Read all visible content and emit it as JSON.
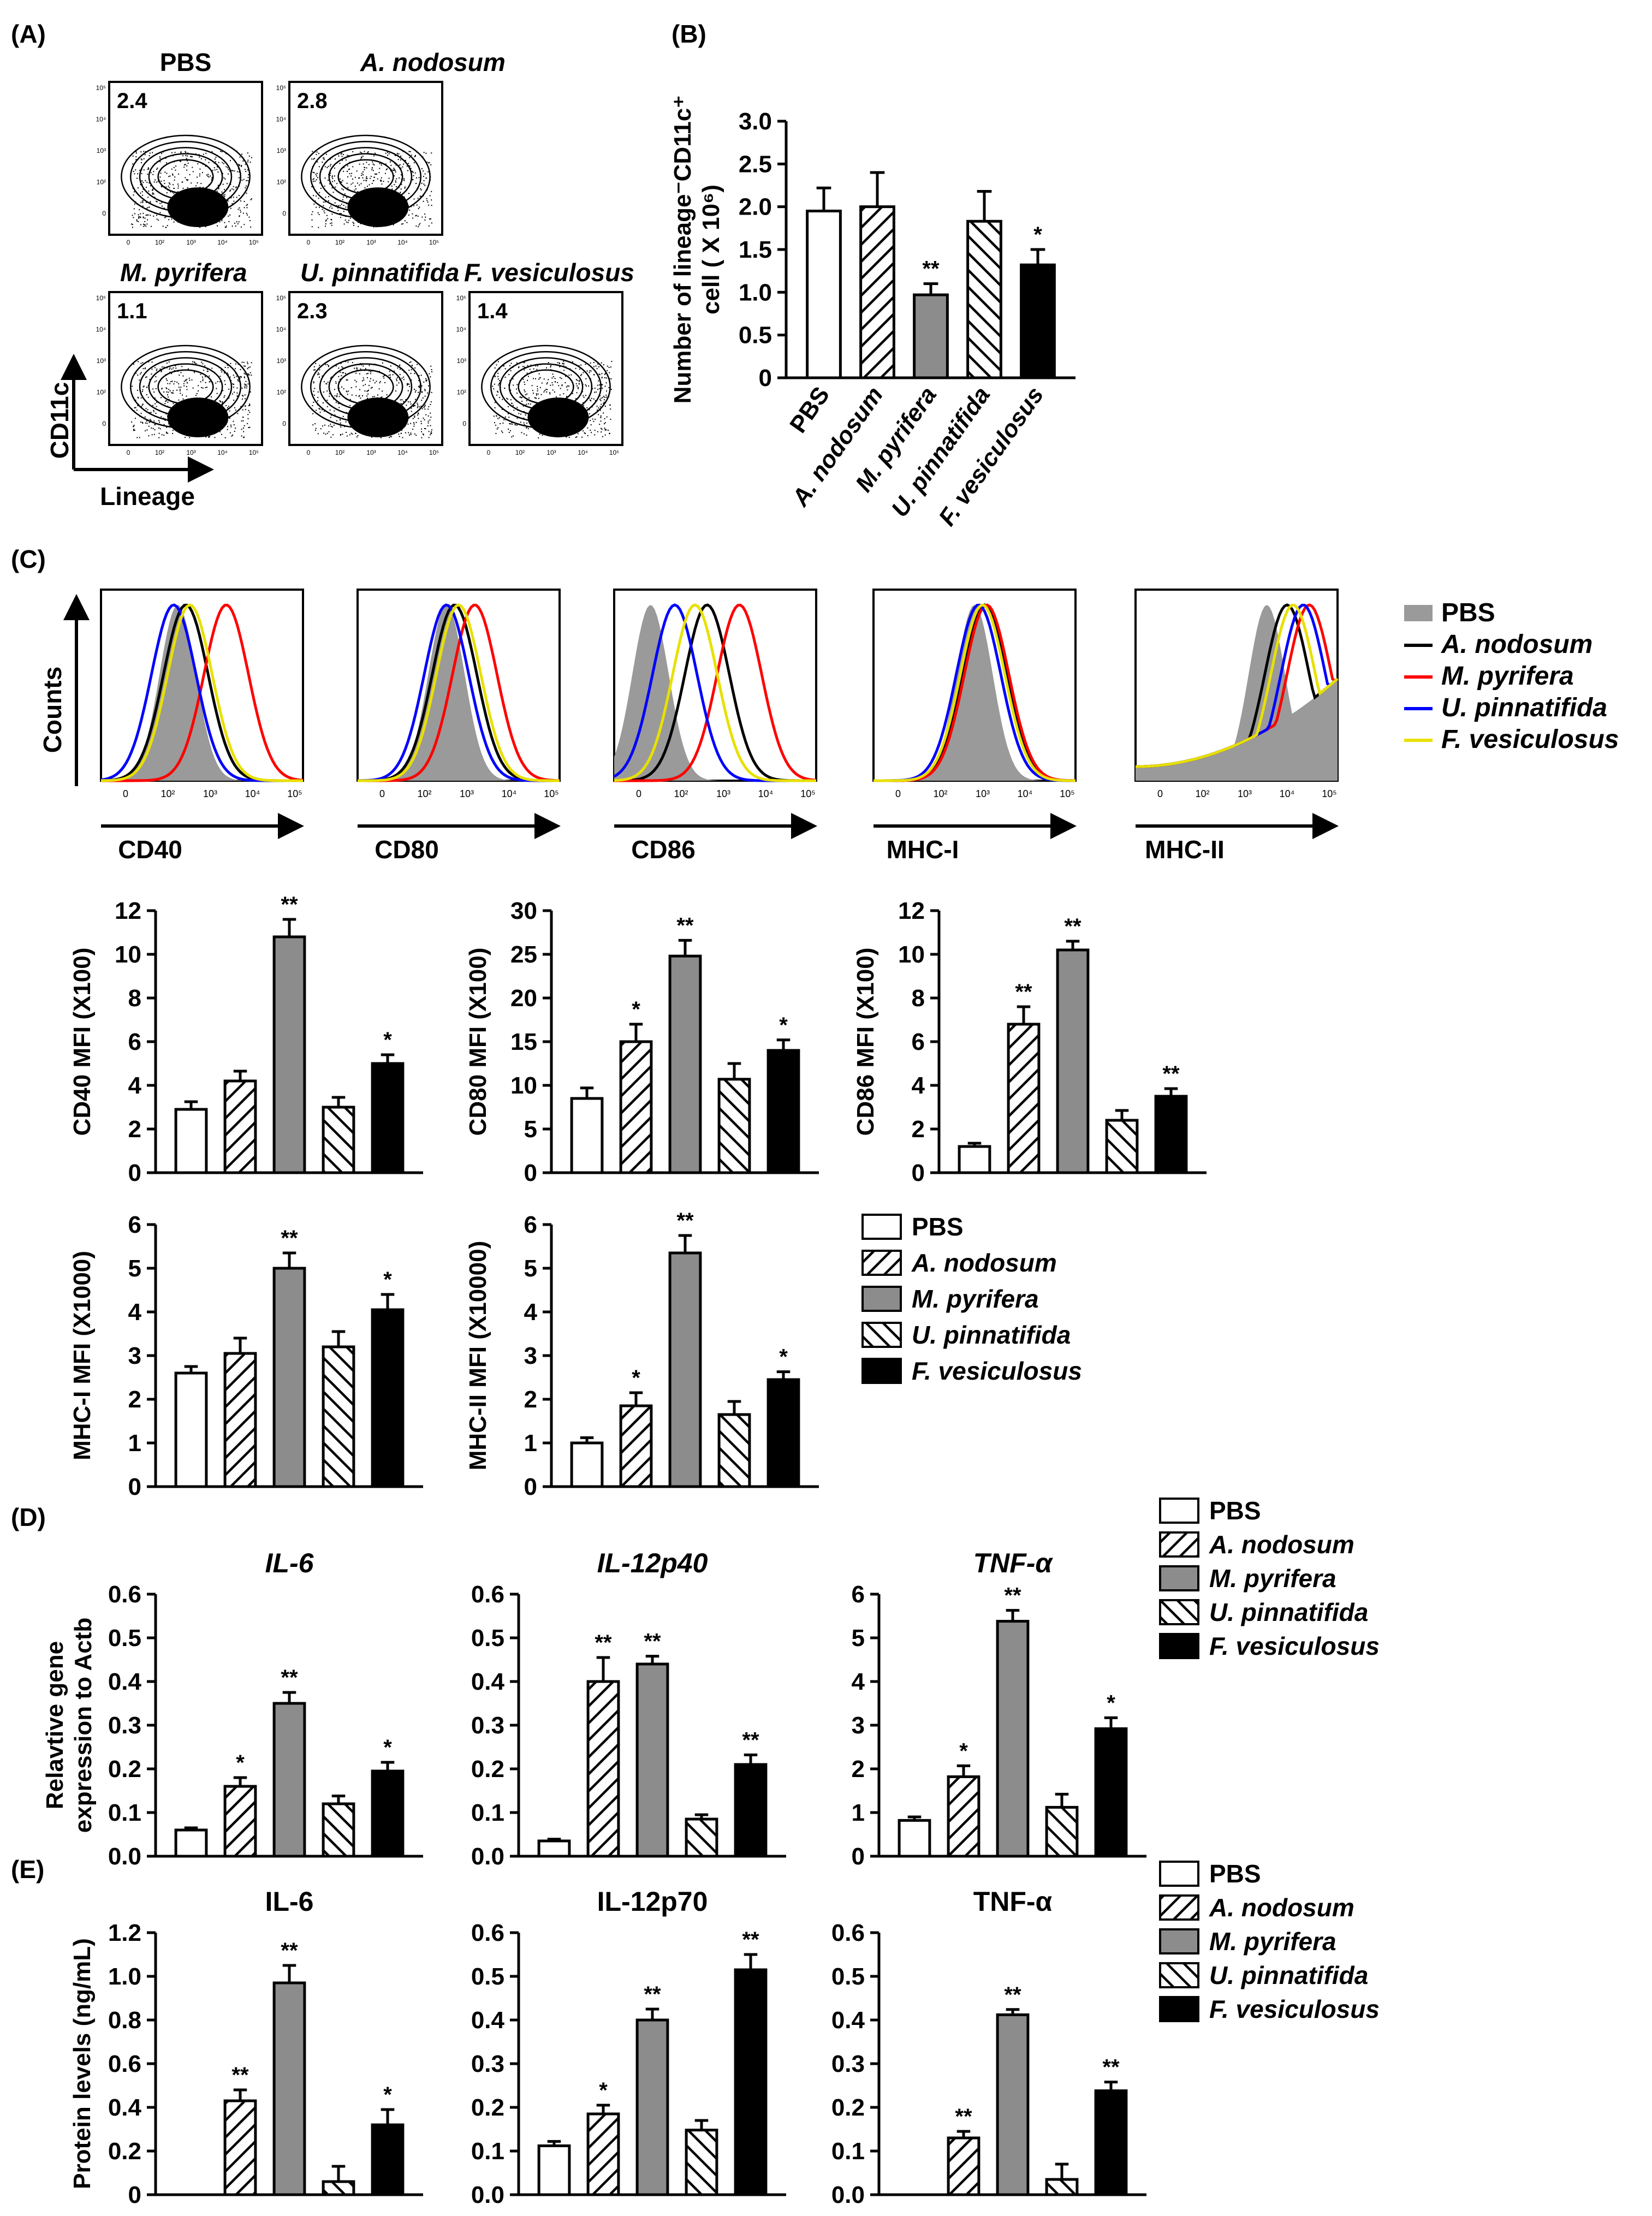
{
  "figure": {
    "panel_labels": [
      "(A)",
      "(B)",
      "(C)",
      "(D)",
      "(E)"
    ],
    "colors": {
      "PBS": "#ffffff",
      "A. nodosum": "hatch-forward",
      "M. pyrifera": "#8c8c8c",
      "U. pinnatifida": "hatch-back",
      "F. vesiculosus": "#000000"
    },
    "line_colors": {
      "PBS": "#9a9a9a",
      "A. nodosum": "#000000",
      "M. pyrifera": "#ff0000",
      "U. pinnatifida": "#0000ff",
      "F. vesiculosus": "#ffff00"
    }
  },
  "chart_data": [
    {
      "id": "A",
      "type": "contour-flow",
      "panels": [
        {
          "title": "PBS",
          "percent": "2.4"
        },
        {
          "title": "A. nodosum",
          "percent": "2.8"
        },
        {
          "title": "M. pyrifera",
          "percent": "1.1"
        },
        {
          "title": "U. pinnatifida",
          "percent": "2.3"
        },
        {
          "title": "F. vesiculosus",
          "percent": "1.4"
        }
      ],
      "xlabel": "Lineage",
      "ylabel": "CD11c",
      "ticks": [
        "0",
        "10²",
        "10³",
        "10⁴",
        "10⁵"
      ]
    },
    {
      "id": "B",
      "type": "bar",
      "categories": [
        "PBS",
        "A. nodosum",
        "M. pyrifera",
        "U. pinnatifida",
        "F. vesiculosus"
      ],
      "values": [
        1.95,
        2.0,
        0.97,
        1.83,
        1.32
      ],
      "errors": [
        0.27,
        0.4,
        0.13,
        0.35,
        0.18
      ],
      "sig": [
        "",
        "",
        "**",
        "",
        "*"
      ],
      "ylabel_line1": "Number of lineage⁻CD11c⁺",
      "ylabel_line2": "cell ( X 10⁶)",
      "ylim": [
        0,
        3.0
      ],
      "yticks": [
        "0",
        "0.5",
        "1.0",
        "1.5",
        "2.0",
        "2.5",
        "3.0"
      ]
    },
    {
      "id": "C-hist",
      "type": "histogram-overlay",
      "markers": [
        "CD40",
        "CD80",
        "CD86",
        "MHC-I",
        "MHC-II"
      ],
      "ylabel": "Counts",
      "ticks": [
        "0",
        "10²",
        "10³",
        "10⁴",
        "10⁵"
      ],
      "legend": [
        "PBS",
        "A. nodosum",
        "M. pyrifera",
        "U. pinnatifida",
        "F. vesiculosus"
      ]
    },
    {
      "id": "C-CD40",
      "type": "bar",
      "values": [
        2.9,
        4.2,
        10.8,
        3.0,
        5.0
      ],
      "errors": [
        0.35,
        0.45,
        0.8,
        0.45,
        0.4
      ],
      "sig": [
        "",
        "",
        "**",
        "",
        "*"
      ],
      "ylabel": "CD40 MFI (X100)",
      "ylim": [
        0,
        12
      ],
      "yticks": [
        "0",
        "2",
        "4",
        "6",
        "8",
        "10",
        "12"
      ]
    },
    {
      "id": "C-CD80",
      "type": "bar",
      "values": [
        8.5,
        15.0,
        24.8,
        10.7,
        14.0
      ],
      "errors": [
        1.2,
        2.0,
        1.8,
        1.8,
        1.2
      ],
      "sig": [
        "",
        "*",
        "**",
        "",
        "*"
      ],
      "ylabel": "CD80 MFI (X100)",
      "ylim": [
        0,
        30
      ],
      "yticks": [
        "0",
        "5",
        "10",
        "15",
        "20",
        "25",
        "30"
      ]
    },
    {
      "id": "C-CD86",
      "type": "bar",
      "values": [
        1.2,
        6.8,
        10.2,
        2.4,
        3.5
      ],
      "errors": [
        0.15,
        0.8,
        0.4,
        0.45,
        0.35
      ],
      "sig": [
        "",
        "**",
        "**",
        "",
        "**"
      ],
      "ylabel": "CD86 MFI (X100)",
      "ylim": [
        0,
        12
      ],
      "yticks": [
        "0",
        "2",
        "4",
        "6",
        "8",
        "10",
        "12"
      ]
    },
    {
      "id": "C-MHCI",
      "type": "bar",
      "values": [
        2.6,
        3.05,
        5.0,
        3.2,
        4.05
      ],
      "errors": [
        0.15,
        0.35,
        0.35,
        0.35,
        0.35
      ],
      "sig": [
        "",
        "",
        "**",
        "",
        "*"
      ],
      "ylabel": "MHC-I MFI (X1000)",
      "ylim": [
        0,
        6
      ],
      "yticks": [
        "0",
        "1",
        "2",
        "3",
        "4",
        "5",
        "6"
      ]
    },
    {
      "id": "C-MHCII",
      "type": "bar",
      "values": [
        1.0,
        1.85,
        5.35,
        1.65,
        2.45
      ],
      "errors": [
        0.12,
        0.3,
        0.4,
        0.3,
        0.18
      ],
      "sig": [
        "",
        "*",
        "**",
        "",
        "*"
      ],
      "ylabel": "MHC-II MFI (X10000)",
      "ylim": [
        0,
        6
      ],
      "yticks": [
        "0",
        "1",
        "2",
        "3",
        "4",
        "5",
        "6"
      ],
      "legend": [
        "PBS",
        "A. nodosum",
        "M. pyrifera",
        "U. pinnatifida",
        "F. vesiculosus"
      ]
    },
    {
      "id": "D-IL6",
      "type": "bar",
      "title": "IL-6",
      "values": [
        0.06,
        0.16,
        0.35,
        0.12,
        0.195
      ],
      "errors": [
        0.005,
        0.02,
        0.025,
        0.018,
        0.02
      ],
      "sig": [
        "",
        "*",
        "**",
        "",
        "*"
      ],
      "ylabel_line1": "Relavtive gene",
      "ylabel_line2": "expression to Actb",
      "ylim": [
        0,
        0.6
      ],
      "yticks": [
        "0.0",
        "0.1",
        "0.2",
        "0.3",
        "0.4",
        "0.5",
        "0.6"
      ]
    },
    {
      "id": "D-IL12p40",
      "type": "bar",
      "title": "IL-12p40",
      "values": [
        0.035,
        0.4,
        0.44,
        0.085,
        0.21
      ],
      "errors": [
        0.004,
        0.055,
        0.018,
        0.01,
        0.022
      ],
      "sig": [
        "",
        "**",
        "**",
        "",
        "**"
      ],
      "ylim": [
        0,
        0.6
      ],
      "yticks": [
        "0.0",
        "0.1",
        "0.2",
        "0.3",
        "0.4",
        "0.5",
        "0.6"
      ]
    },
    {
      "id": "D-TNFa",
      "type": "bar",
      "title": "TNF-α",
      "values": [
        0.82,
        1.82,
        5.38,
        1.12,
        2.92
      ],
      "errors": [
        0.08,
        0.25,
        0.25,
        0.3,
        0.25
      ],
      "sig": [
        "",
        "*",
        "**",
        "",
        "*"
      ],
      "ylim": [
        0,
        6
      ],
      "yticks": [
        "0",
        "1",
        "2",
        "3",
        "4",
        "5",
        "6"
      ],
      "legend": [
        "PBS",
        "A. nodosum",
        "M. pyrifera",
        "U. pinnatifida",
        "F. vesiculosus"
      ]
    },
    {
      "id": "E-IL6",
      "type": "bar",
      "title": "IL-6",
      "values": [
        0.0,
        0.43,
        0.97,
        0.06,
        0.32
      ],
      "errors": [
        0.0,
        0.05,
        0.08,
        0.07,
        0.07
      ],
      "sig": [
        "",
        "**",
        "**",
        "",
        "*"
      ],
      "ylabel": "Protein levels (ng/mL)",
      "ylim": [
        0,
        1.2
      ],
      "yticks": [
        "0",
        "0.2",
        "0.4",
        "0.6",
        "0.8",
        "1.0",
        "1.2"
      ]
    },
    {
      "id": "E-IL12p70",
      "type": "bar",
      "title": "IL-12p70",
      "values": [
        0.112,
        0.185,
        0.4,
        0.148,
        0.515
      ],
      "errors": [
        0.01,
        0.02,
        0.025,
        0.022,
        0.035
      ],
      "sig": [
        "",
        "*",
        "**",
        "",
        "**"
      ],
      "ylim": [
        0,
        0.6
      ],
      "yticks": [
        "0.0",
        "0.1",
        "0.2",
        "0.3",
        "0.4",
        "0.5",
        "0.6"
      ]
    },
    {
      "id": "E-TNFa",
      "type": "bar",
      "title": "TNF-α",
      "values": [
        0.0,
        0.13,
        0.412,
        0.035,
        0.238
      ],
      "errors": [
        0.0,
        0.015,
        0.012,
        0.035,
        0.02
      ],
      "sig": [
        "",
        "**",
        "**",
        "",
        "**"
      ],
      "ylim": [
        0,
        0.6
      ],
      "yticks": [
        "0.0",
        "0.1",
        "0.2",
        "0.3",
        "0.4",
        "0.5",
        "0.6"
      ],
      "legend": [
        "PBS",
        "A. nodosum",
        "M. pyrifera",
        "U. pinnatifida",
        "F. vesiculosus"
      ]
    }
  ]
}
